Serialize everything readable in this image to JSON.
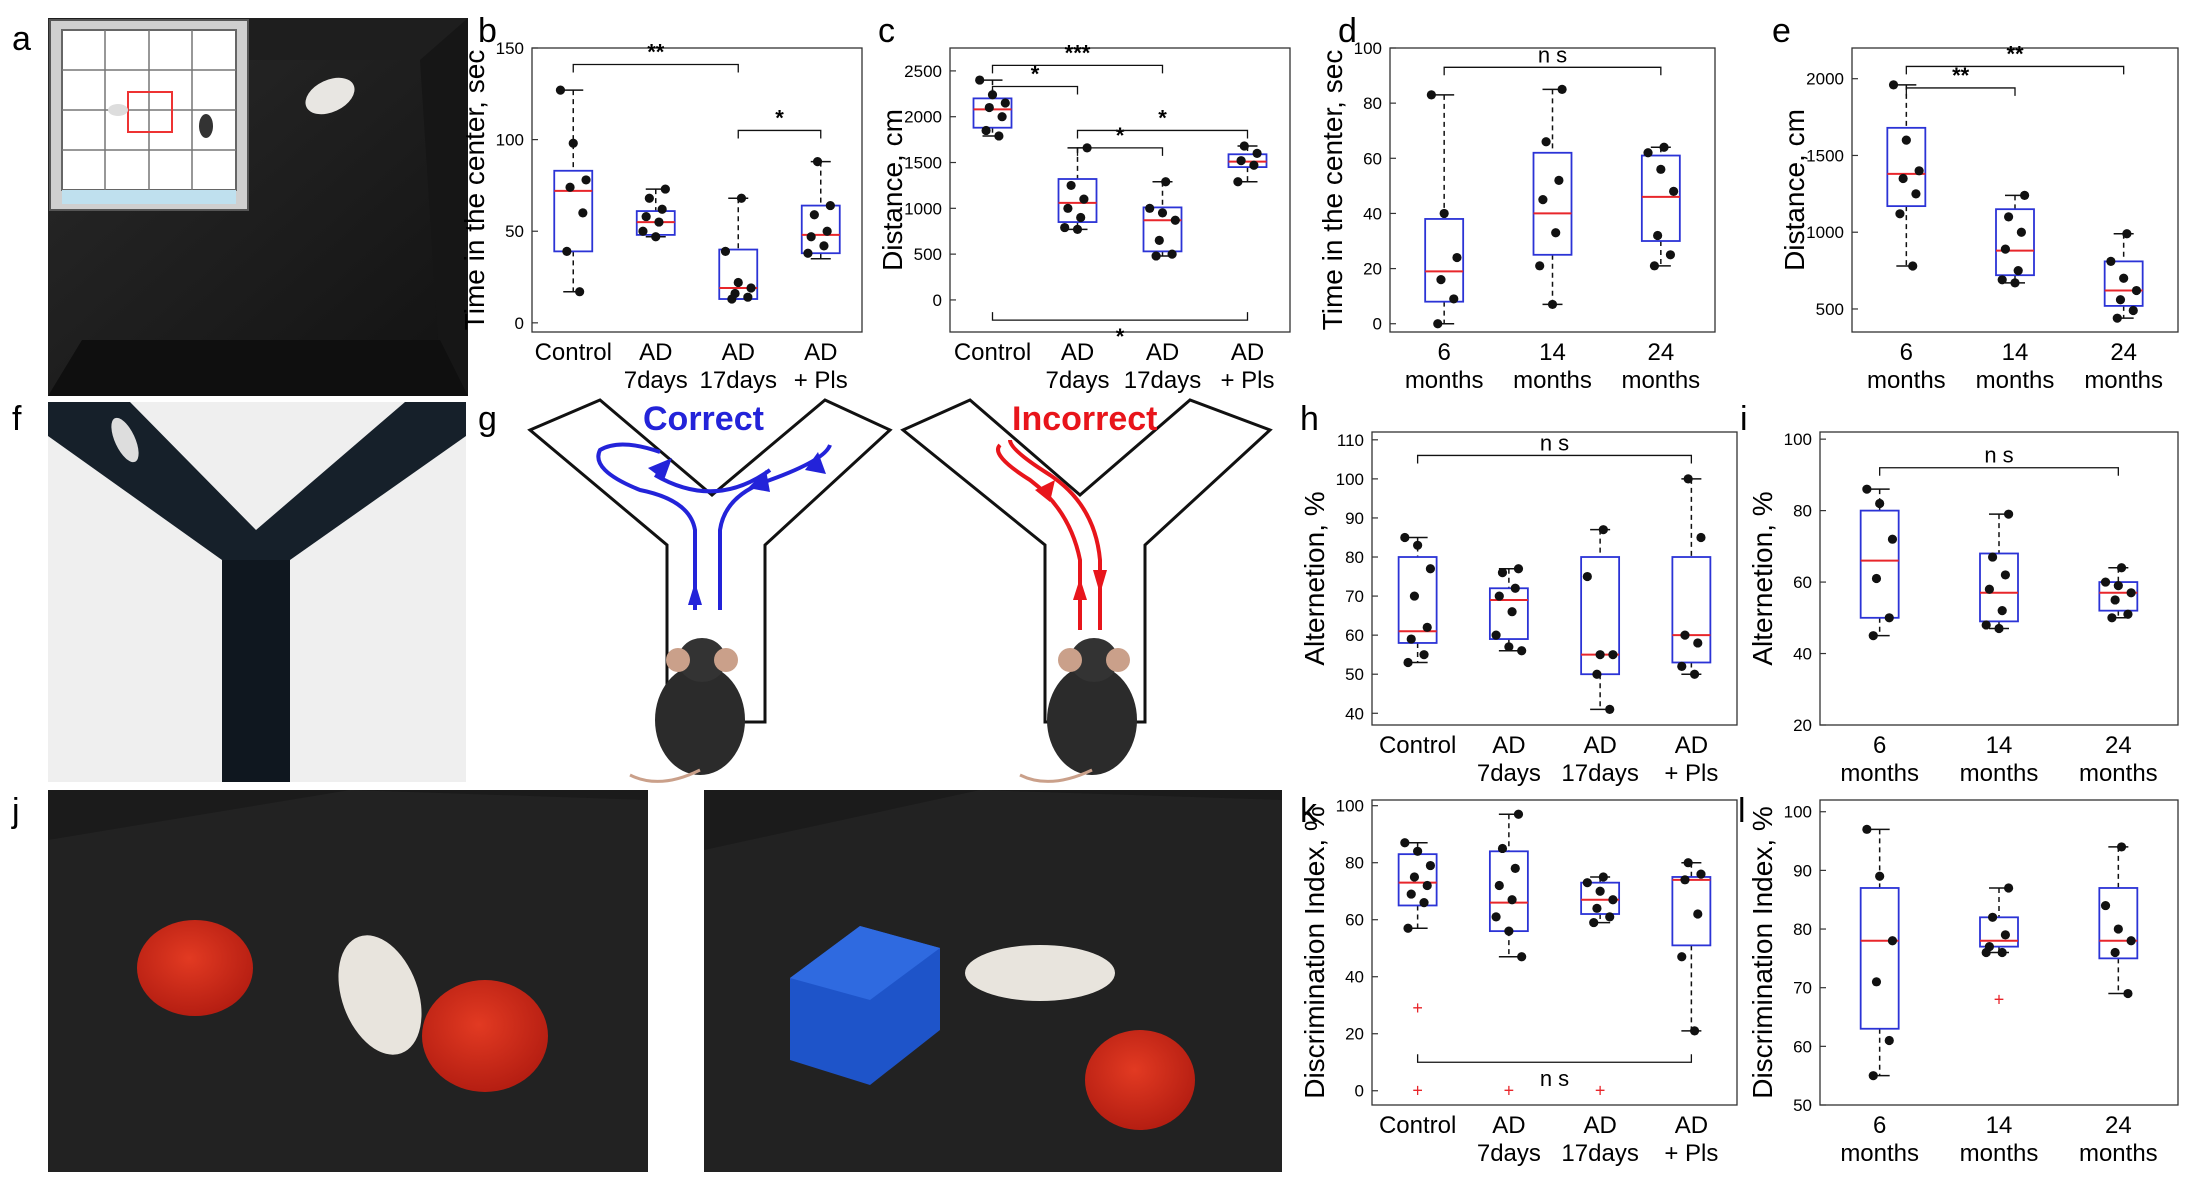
{
  "panel_labels": {
    "a": "a",
    "b": "b",
    "c": "c",
    "d": "d",
    "e": "e",
    "f": "f",
    "g": "g",
    "h": "h",
    "i": "i",
    "j": "j",
    "k": "k",
    "l": "l"
  },
  "ymaze_labels": {
    "correct": "Correct",
    "incorrect": "Incorrect"
  },
  "colors": {
    "box": "#2b33d6",
    "median": "#e8262b",
    "dot": "#111111",
    "outlier": "#e8262b",
    "correct": "#2323d9",
    "incorrect": "#e8151b",
    "photo_bg": "#191919"
  },
  "chart_data": [
    {
      "panel": "b",
      "type": "box",
      "ylabel": "Time in the center, sec",
      "categories": [
        [
          "Control"
        ],
        [
          "AD",
          "7days"
        ],
        [
          "AD",
          "17days"
        ],
        [
          "AD",
          "+ Pls"
        ]
      ],
      "ylim": [
        -5,
        150
      ],
      "yticks": [
        0,
        50,
        100,
        150
      ],
      "boxes": [
        {
          "q1": 39,
          "median": 72,
          "q3": 83,
          "whisker_low": 17,
          "whisker_high": 127
        },
        {
          "q1": 48,
          "median": 55,
          "q3": 61,
          "whisker_low": 47,
          "whisker_high": 73
        },
        {
          "q1": 13,
          "median": 19,
          "q3": 40,
          "whisker_low": 13,
          "whisker_high": 68
        },
        {
          "q1": 38,
          "median": 48,
          "q3": 64,
          "whisker_low": 35,
          "whisker_high": 88
        }
      ],
      "points": [
        [
          127,
          98,
          78,
          74,
          60,
          39,
          17
        ],
        [
          73,
          68,
          62,
          58,
          55,
          50,
          47
        ],
        [
          68,
          39,
          22,
          19,
          16,
          14,
          13
        ],
        [
          88,
          64,
          59,
          50,
          47,
          42,
          38
        ]
      ],
      "outliers": [
        [],
        [],
        [],
        []
      ],
      "significance": [
        {
          "from": 1,
          "to": 3,
          "label": "**",
          "y": 141
        },
        {
          "from": 3,
          "to": 4,
          "label": "*",
          "y": 105
        }
      ]
    },
    {
      "panel": "c",
      "type": "box",
      "ylabel": "Distance, cm",
      "categories": [
        [
          "Control"
        ],
        [
          "AD",
          "7days"
        ],
        [
          "AD",
          "17days"
        ],
        [
          "AD",
          "+ Pls"
        ]
      ],
      "ylim": [
        -350,
        2750
      ],
      "yticks": [
        0,
        500,
        1000,
        1500,
        2000,
        2500
      ],
      "boxes": [
        {
          "q1": 1880,
          "median": 2080,
          "q3": 2200,
          "whisker_low": 1790,
          "whisker_high": 2400
        },
        {
          "q1": 850,
          "median": 1060,
          "q3": 1320,
          "whisker_low": 770,
          "whisker_high": 1660
        },
        {
          "q1": 530,
          "median": 870,
          "q3": 1010,
          "whisker_low": 480,
          "whisker_high": 1290
        },
        {
          "q1": 1450,
          "median": 1510,
          "q3": 1590,
          "whisker_low": 1290,
          "whisker_high": 1680
        }
      ],
      "points": [
        [
          2400,
          2240,
          2150,
          2100,
          2000,
          1850,
          1790
        ],
        [
          1660,
          1250,
          1100,
          1000,
          900,
          790,
          770
        ],
        [
          1290,
          1000,
          950,
          870,
          650,
          500,
          480
        ],
        [
          1680,
          1600,
          1520,
          1470,
          1290
        ]
      ],
      "outliers": [
        [],
        [],
        [],
        []
      ],
      "significance": [
        {
          "from": 1,
          "to": 2,
          "label": "*",
          "y": 2330
        },
        {
          "from": 1,
          "to": 3,
          "label": "***",
          "y": 2560
        },
        {
          "from": 2,
          "to": 3,
          "label": "*",
          "y": 1660
        },
        {
          "from": 2,
          "to": 4,
          "label": "*",
          "y": 1850
        },
        {
          "from": 1,
          "to": 4,
          "label": "*",
          "y": -220
        }
      ]
    },
    {
      "panel": "d",
      "type": "box",
      "ylabel": "Time in the center, sec",
      "categories": [
        [
          "6",
          "months"
        ],
        [
          "14",
          "months"
        ],
        [
          "24",
          "months"
        ]
      ],
      "ylim": [
        -3,
        100
      ],
      "yticks": [
        0,
        20,
        40,
        60,
        80,
        100
      ],
      "boxes": [
        {
          "q1": 8,
          "median": 19,
          "q3": 38,
          "whisker_low": 0,
          "whisker_high": 83
        },
        {
          "q1": 25,
          "median": 40,
          "q3": 62,
          "whisker_low": 7,
          "whisker_high": 85
        },
        {
          "q1": 30,
          "median": 46,
          "q3": 61,
          "whisker_low": 21,
          "whisker_high": 64
        }
      ],
      "points": [
        [
          83,
          40,
          24,
          16,
          9,
          0
        ],
        [
          85,
          66,
          52,
          45,
          33,
          21,
          7
        ],
        [
          64,
          62,
          56,
          48,
          32,
          25,
          21
        ]
      ],
      "outliers": [
        [],
        [],
        []
      ],
      "significance": [
        {
          "from": 1,
          "to": 3,
          "label": "n s",
          "y": 93
        }
      ]
    },
    {
      "panel": "e",
      "type": "box",
      "ylabel": "Distance, cm",
      "categories": [
        [
          "6",
          "months"
        ],
        [
          "14",
          "months"
        ],
        [
          "24",
          "months"
        ]
      ],
      "ylim": [
        350,
        2200
      ],
      "yticks": [
        500,
        1000,
        1500,
        2000
      ],
      "boxes": [
        {
          "q1": 1170,
          "median": 1380,
          "q3": 1680,
          "whisker_low": 780,
          "whisker_high": 1960
        },
        {
          "q1": 720,
          "median": 880,
          "q3": 1150,
          "whisker_low": 670,
          "whisker_high": 1240
        },
        {
          "q1": 520,
          "median": 620,
          "q3": 810,
          "whisker_low": 440,
          "whisker_high": 990
        }
      ],
      "points": [
        [
          1960,
          1600,
          1400,
          1350,
          1250,
          1120,
          780
        ],
        [
          1240,
          1100,
          1000,
          890,
          750,
          690,
          670
        ],
        [
          990,
          810,
          700,
          620,
          560,
          490,
          440
        ]
      ],
      "outliers": [
        [],
        [],
        []
      ],
      "significance": [
        {
          "from": 1,
          "to": 2,
          "label": "**",
          "y": 1940
        },
        {
          "from": 1,
          "to": 3,
          "label": "**",
          "y": 2080
        }
      ]
    },
    {
      "panel": "h",
      "type": "box",
      "ylabel": "Alternetion, %",
      "categories": [
        [
          "Control"
        ],
        [
          "AD",
          "7days"
        ],
        [
          "AD",
          "17days"
        ],
        [
          "AD",
          "+ Pls"
        ]
      ],
      "ylim": [
        37,
        112
      ],
      "yticks": [
        40,
        50,
        60,
        70,
        80,
        90,
        100,
        110
      ],
      "boxes": [
        {
          "q1": 58,
          "median": 61,
          "q3": 80,
          "whisker_low": 53,
          "whisker_high": 85
        },
        {
          "q1": 59,
          "median": 69,
          "q3": 72,
          "whisker_low": 56,
          "whisker_high": 77
        },
        {
          "q1": 50,
          "median": 55,
          "q3": 80,
          "whisker_low": 41,
          "whisker_high": 87
        },
        {
          "q1": 53,
          "median": 60,
          "q3": 80,
          "whisker_low": 50,
          "whisker_high": 100
        }
      ],
      "points": [
        [
          85,
          83,
          77,
          70,
          62,
          59,
          55,
          53
        ],
        [
          77,
          76,
          72,
          70,
          66,
          60,
          57,
          56
        ],
        [
          87,
          75,
          55,
          55,
          50,
          41
        ],
        [
          100,
          85,
          60,
          58,
          52,
          50
        ]
      ],
      "outliers": [
        [],
        [],
        [],
        []
      ],
      "significance": [
        {
          "from": 1,
          "to": 4,
          "label": "n s",
          "y": 106
        }
      ]
    },
    {
      "panel": "i",
      "type": "box",
      "ylabel": "Alternetion, %",
      "categories": [
        [
          "6",
          "months"
        ],
        [
          "14",
          "months"
        ],
        [
          "24",
          "months"
        ]
      ],
      "ylim": [
        20,
        102
      ],
      "yticks": [
        20,
        40,
        60,
        80,
        100
      ],
      "boxes": [
        {
          "q1": 50,
          "median": 66,
          "q3": 80,
          "whisker_low": 45,
          "whisker_high": 86
        },
        {
          "q1": 49,
          "median": 57,
          "q3": 68,
          "whisker_low": 47,
          "whisker_high": 79
        },
        {
          "q1": 52,
          "median": 57,
          "q3": 60,
          "whisker_low": 50,
          "whisker_high": 64
        }
      ],
      "points": [
        [
          86,
          82,
          72,
          61,
          50,
          45
        ],
        [
          79,
          67,
          62,
          58,
          52,
          48,
          47
        ],
        [
          64,
          60,
          59,
          57,
          55,
          51,
          50
        ]
      ],
      "outliers": [
        [],
        [],
        []
      ],
      "significance": [
        {
          "from": 1,
          "to": 3,
          "label": "n s",
          "y": 92
        }
      ]
    },
    {
      "panel": "k",
      "type": "box",
      "ylabel": "Discrimination Index, %",
      "categories": [
        [
          "Control"
        ],
        [
          "AD",
          "7days"
        ],
        [
          "AD",
          "17days"
        ],
        [
          "AD",
          "+ Pls"
        ]
      ],
      "ylim": [
        -5,
        102
      ],
      "yticks": [
        0,
        20,
        40,
        60,
        80,
        100
      ],
      "boxes": [
        {
          "q1": 65,
          "median": 73,
          "q3": 83,
          "whisker_low": 57,
          "whisker_high": 87
        },
        {
          "q1": 56,
          "median": 66,
          "q3": 84,
          "whisker_low": 47,
          "whisker_high": 97
        },
        {
          "q1": 62,
          "median": 67,
          "q3": 73,
          "whisker_low": 59,
          "whisker_high": 75
        },
        {
          "q1": 51,
          "median": 74,
          "q3": 75,
          "whisker_low": 21,
          "whisker_high": 80
        }
      ],
      "points": [
        [
          87,
          84,
          79,
          75,
          72,
          69,
          66,
          57
        ],
        [
          97,
          85,
          78,
          72,
          67,
          61,
          56,
          47
        ],
        [
          75,
          73,
          70,
          67,
          64,
          61,
          59
        ],
        [
          80,
          76,
          74,
          62,
          47,
          21
        ]
      ],
      "outliers": [
        [
          29,
          0
        ],
        [
          0
        ],
        [
          0
        ],
        []
      ],
      "significance": [
        {
          "from": 1,
          "to": 4,
          "label": "n s",
          "y": 10
        }
      ]
    },
    {
      "panel": "l",
      "type": "box",
      "ylabel": "Discrimination Index, %",
      "categories": [
        [
          "6",
          "months"
        ],
        [
          "14",
          "months"
        ],
        [
          "24",
          "months"
        ]
      ],
      "ylim": [
        50,
        102
      ],
      "yticks": [
        50,
        60,
        70,
        80,
        90,
        100
      ],
      "boxes": [
        {
          "q1": 63,
          "median": 78,
          "q3": 87,
          "whisker_low": 55,
          "whisker_high": 97
        },
        {
          "q1": 77,
          "median": 78,
          "q3": 82,
          "whisker_low": 76,
          "whisker_high": 87
        },
        {
          "q1": 75,
          "median": 78,
          "q3": 87,
          "whisker_low": 69,
          "whisker_high": 94
        }
      ],
      "points": [
        [
          97,
          89,
          78,
          71,
          61,
          55
        ],
        [
          87,
          82,
          79,
          77,
          76,
          76
        ],
        [
          94,
          84,
          80,
          78,
          76,
          69
        ]
      ],
      "outliers": [
        [],
        [
          68
        ],
        []
      ],
      "significance": []
    }
  ]
}
